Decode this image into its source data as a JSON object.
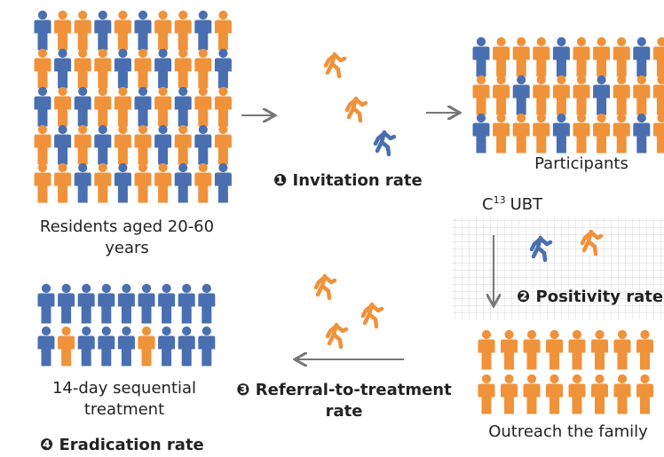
{
  "residents_label": "Residents aged 20-60 years",
  "step1": "❶ Invitation rate",
  "participants_label": "Participants",
  "test": {
    "base": "C",
    "sup": "13",
    "rest": "UBT"
  },
  "step2": "❷ Positivity rate",
  "outreach_label": "Outreach the family",
  "step3": "❸ Referral-to-treatment rate",
  "treatment_label": "14-day sequential treatment",
  "step4": "❹ Eradication rate"
}
